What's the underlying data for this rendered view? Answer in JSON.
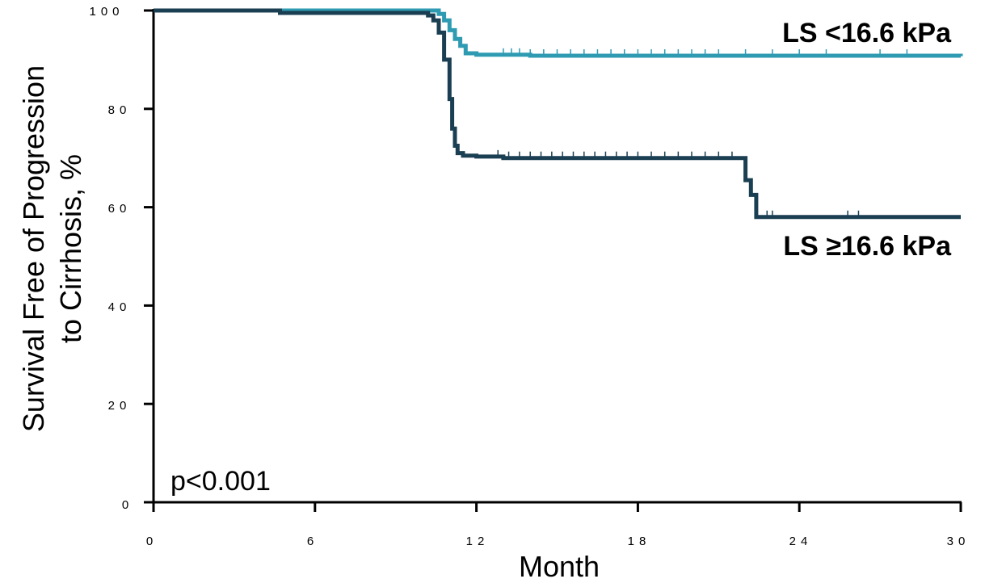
{
  "chart_data": {
    "type": "line",
    "xlabel": "Month",
    "ylabel_line1": "Survival Free of Progression",
    "ylabel_line2": "to Cirrhosis, %",
    "annotation": "p<0.001",
    "xlim": [
      0,
      30
    ],
    "ylim": [
      0,
      100
    ],
    "xticks": [
      0,
      6,
      12,
      18,
      24,
      30
    ],
    "yticks": [
      0,
      20,
      40,
      60,
      80,
      100
    ],
    "xtick_labels": [
      "0",
      "6",
      "12",
      "18",
      "24",
      "30"
    ],
    "ytick_labels": [
      "0",
      "20",
      "40",
      "60",
      "80",
      "100"
    ],
    "grid": false,
    "series": [
      {
        "name": "LS <16.6 kPa",
        "color": "#2e9bb2",
        "x": [
          0,
          10.4,
          10.6,
          10.8,
          11.0,
          11.2,
          11.4,
          11.6,
          12.0,
          14.0,
          30.0
        ],
        "y": [
          100,
          100,
          99.3,
          98.0,
          96.0,
          94.2,
          92.8,
          91.3,
          91.0,
          90.8,
          90.7
        ],
        "censor_x": [
          13.0,
          13.3,
          13.6,
          14.0,
          14.5,
          15.0,
          15.5,
          16.0,
          16.5,
          17.0,
          17.5,
          18.0,
          18.5,
          19.0,
          19.5,
          20.0,
          20.5,
          21.0,
          22.0,
          23.0,
          24.0,
          25.0,
          27.0,
          28.0
        ]
      },
      {
        "name": "LS ≥16.6 kPa",
        "color": "#1b3f52",
        "x": [
          0,
          4.7,
          10.2,
          10.4,
          10.6,
          10.8,
          11.0,
          11.1,
          11.2,
          11.3,
          11.5,
          12.0,
          13.0,
          21.9,
          22.0,
          22.2,
          22.4,
          22.6,
          30.0
        ],
        "y": [
          100,
          99.5,
          99.0,
          98.0,
          95.5,
          90.0,
          82.0,
          76.0,
          72.5,
          71.0,
          70.5,
          70.3,
          70.0,
          70.0,
          65.5,
          62.5,
          58.0,
          58.0,
          58.0
        ],
        "censor_x": [
          12.8,
          13.2,
          13.6,
          14.0,
          14.4,
          14.8,
          15.2,
          15.6,
          16.0,
          16.4,
          16.8,
          17.2,
          17.6,
          18.0,
          18.5,
          19.0,
          19.5,
          20.0,
          20.5,
          21.0,
          21.5,
          22.8,
          23.0,
          25.8,
          26.2
        ]
      }
    ]
  }
}
